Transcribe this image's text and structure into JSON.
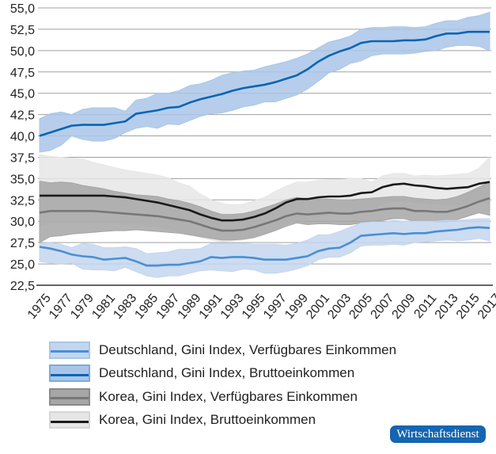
{
  "chart_data": {
    "type": "area",
    "x": [
      1975,
      1976,
      1977,
      1978,
      1979,
      1980,
      1981,
      1982,
      1983,
      1984,
      1985,
      1986,
      1987,
      1988,
      1989,
      1990,
      1991,
      1992,
      1993,
      1994,
      1995,
      1996,
      1997,
      1998,
      1999,
      2000,
      2001,
      2002,
      2003,
      2004,
      2005,
      2006,
      2007,
      2008,
      2009,
      2010,
      2011,
      2012,
      2013,
      2014,
      2015,
      2016,
      2017
    ],
    "xticks": [
      "1975",
      "1977",
      "1979",
      "1981",
      "1983",
      "1985",
      "1987",
      "1989",
      "1991",
      "1993",
      "1995",
      "1997",
      "1999",
      "2001",
      "2003",
      "2005",
      "2007",
      "2009",
      "2011",
      "2013",
      "2015",
      "2017"
    ],
    "yticks": [
      "22,5",
      "25,0",
      "27,5",
      "30,0",
      "32,5",
      "35,0",
      "37,5",
      "40,0",
      "42,5",
      "45,0",
      "47,5",
      "50,0",
      "52,5",
      "55,0"
    ],
    "ylim": [
      22.5,
      55.0
    ],
    "grid": true,
    "legend_position": "bottom",
    "series": [
      {
        "name": "Korea, Gini Index, Bruttoeinkommen",
        "line_color": "#1a1a1a",
        "band_color": "#e6e6e6",
        "values": [
          33.0,
          33.0,
          33.0,
          33.0,
          33.0,
          33.0,
          33.0,
          32.9,
          32.8,
          32.6,
          32.4,
          32.2,
          31.9,
          31.6,
          31.3,
          30.8,
          30.4,
          30.1,
          30.1,
          30.2,
          30.5,
          30.9,
          31.5,
          32.2,
          32.6,
          32.6,
          32.8,
          32.9,
          32.9,
          33.0,
          33.3,
          33.4,
          34.0,
          34.3,
          34.4,
          34.2,
          34.1,
          33.9,
          33.8,
          33.9,
          34.0,
          34.4,
          34.6
        ],
        "low": [
          29.5,
          29.8,
          29.8,
          29.8,
          29.8,
          29.8,
          29.8,
          29.8,
          29.7,
          29.6,
          29.5,
          29.3,
          29.1,
          28.8,
          28.5,
          28.1,
          27.8,
          27.6,
          27.7,
          27.8,
          28.0,
          28.4,
          28.9,
          29.6,
          30.1,
          30.3,
          30.5,
          30.8,
          30.9,
          31.0,
          31.3,
          31.5,
          32.0,
          32.3,
          32.3,
          32.2,
          32.1,
          31.9,
          31.8,
          31.9,
          32.0,
          32.4,
          32.0
        ],
        "high": [
          37.8,
          37.6,
          37.5,
          37.4,
          37.3,
          36.9,
          36.6,
          36.3,
          36.0,
          35.8,
          35.6,
          35.4,
          35.1,
          34.5,
          34.1,
          33.2,
          32.5,
          32.1,
          31.9,
          32.0,
          32.4,
          32.8,
          33.5,
          34.1,
          34.6,
          34.6,
          34.8,
          34.9,
          34.9,
          35.0,
          35.0,
          34.6,
          35.3,
          35.6,
          35.6,
          35.3,
          35.4,
          35.3,
          35.4,
          35.5,
          35.6,
          36.2,
          37.5
        ]
      },
      {
        "name": "Korea, Gini Index, Verfügbares Einkommen",
        "line_color": "#777777",
        "band_color": "#a6a6a6",
        "values": [
          31.0,
          31.2,
          31.2,
          31.2,
          31.2,
          31.2,
          31.1,
          31.0,
          30.9,
          30.8,
          30.7,
          30.6,
          30.4,
          30.2,
          30.0,
          29.6,
          29.2,
          28.9,
          28.9,
          29.0,
          29.3,
          29.7,
          30.1,
          30.6,
          30.9,
          30.8,
          30.9,
          31.0,
          30.9,
          30.9,
          31.1,
          31.2,
          31.4,
          31.5,
          31.5,
          31.2,
          31.2,
          31.1,
          31.1,
          31.4,
          31.8,
          32.3,
          32.7
        ],
        "low": [
          27.5,
          28.2,
          28.3,
          28.5,
          28.6,
          28.7,
          28.8,
          28.9,
          28.9,
          29.0,
          28.9,
          28.8,
          28.7,
          28.6,
          28.4,
          28.2,
          28.0,
          27.8,
          27.8,
          27.9,
          28.1,
          28.5,
          28.9,
          29.4,
          29.8,
          29.6,
          29.7,
          29.7,
          29.6,
          29.6,
          29.8,
          30.0,
          30.1,
          30.3,
          30.3,
          30.0,
          30.0,
          29.9,
          29.9,
          30.2,
          30.6,
          31.0,
          30.7
        ],
        "high": [
          34.7,
          34.5,
          34.6,
          34.5,
          34.2,
          34.0,
          33.8,
          33.5,
          33.3,
          33.1,
          33.0,
          32.9,
          32.6,
          32.4,
          32.1,
          31.7,
          31.2,
          30.8,
          30.8,
          30.9,
          31.2,
          31.6,
          32.0,
          32.5,
          32.8,
          32.6,
          32.6,
          32.6,
          32.5,
          32.5,
          32.6,
          32.7,
          32.8,
          32.9,
          32.9,
          32.7,
          32.6,
          32.5,
          32.6,
          32.9,
          33.4,
          34.0,
          34.6
        ]
      },
      {
        "name": "Deutschland, Gini Index, Verfügbares Einkommen",
        "line_color": "#4a8fd4",
        "band_color": "#c4d6ef",
        "values": [
          27.0,
          26.8,
          26.5,
          26.1,
          25.9,
          25.8,
          25.5,
          25.6,
          25.7,
          25.3,
          24.8,
          24.8,
          24.9,
          24.9,
          25.1,
          25.3,
          25.8,
          25.7,
          25.8,
          25.8,
          25.7,
          25.5,
          25.5,
          25.5,
          25.7,
          25.9,
          26.5,
          26.8,
          26.9,
          27.5,
          28.3,
          28.4,
          28.5,
          28.6,
          28.5,
          28.6,
          28.6,
          28.8,
          28.9,
          29.0,
          29.2,
          29.3,
          29.2
        ],
        "low": [
          25.3,
          25.1,
          25.0,
          25.1,
          24.4,
          24.3,
          24.3,
          24.2,
          24.6,
          24.1,
          23.6,
          23.4,
          23.6,
          23.6,
          23.9,
          24.2,
          24.3,
          24.2,
          24.1,
          24.4,
          24.3,
          23.9,
          23.9,
          24.1,
          24.4,
          24.8,
          25.5,
          25.8,
          25.8,
          26.3,
          27.1,
          27.2,
          27.2,
          27.3,
          27.2,
          27.5,
          27.6,
          27.7,
          27.8,
          27.7,
          27.8,
          28.0,
          27.7
        ],
        "high": [
          27.4,
          27.5,
          27.3,
          26.9,
          27.4,
          27.3,
          26.9,
          26.9,
          27.0,
          26.8,
          26.2,
          26.3,
          26.4,
          26.7,
          26.7,
          26.8,
          27.4,
          27.4,
          27.4,
          27.4,
          27.3,
          27.3,
          27.3,
          27.2,
          27.4,
          27.8,
          28.4,
          28.4,
          28.8,
          29.3,
          29.8,
          29.9,
          29.9,
          30.1,
          30.0,
          30.0,
          30.0,
          30.0,
          30.1,
          30.1,
          30.2,
          30.3,
          30.3
        ]
      },
      {
        "name": "Deutschland, Gini Index, Bruttoeinkommen",
        "line_color": "#0a64b4",
        "band_color": "#a9c6e8",
        "values": [
          40.0,
          40.4,
          40.8,
          41.2,
          41.3,
          41.3,
          41.3,
          41.5,
          41.7,
          42.6,
          42.8,
          43.0,
          43.3,
          43.4,
          43.9,
          44.3,
          44.6,
          44.9,
          45.3,
          45.6,
          45.8,
          46.0,
          46.3,
          46.7,
          47.1,
          47.8,
          48.7,
          49.4,
          49.9,
          50.3,
          50.9,
          51.1,
          51.1,
          51.1,
          51.2,
          51.2,
          51.3,
          51.7,
          52.0,
          52.0,
          52.2,
          52.2,
          52.2
        ],
        "low": [
          38.1,
          38.3,
          38.9,
          40.0,
          39.6,
          39.4,
          39.4,
          39.7,
          40.4,
          40.9,
          41.1,
          40.9,
          41.4,
          41.3,
          41.8,
          42.3,
          42.6,
          42.7,
          43.0,
          43.4,
          43.6,
          44.0,
          44.0,
          44.4,
          44.8,
          45.5,
          46.4,
          47.4,
          47.8,
          48.5,
          48.8,
          49.4,
          49.6,
          49.6,
          49.6,
          49.7,
          49.9,
          50.0,
          50.4,
          50.6,
          50.6,
          50.5,
          50.0
        ],
        "high": [
          42.0,
          42.6,
          42.8,
          42.5,
          43.1,
          43.3,
          43.3,
          43.3,
          42.9,
          44.2,
          44.4,
          45.0,
          45.0,
          45.3,
          45.9,
          46.1,
          46.5,
          47.1,
          47.4,
          47.6,
          47.7,
          48.1,
          48.4,
          48.7,
          49.1,
          49.6,
          50.3,
          51.0,
          51.3,
          51.7,
          52.5,
          52.7,
          52.7,
          52.8,
          52.8,
          52.7,
          52.8,
          53.2,
          53.5,
          53.5,
          53.9,
          54.1,
          54.5
        ]
      }
    ]
  },
  "legend": [
    {
      "label": "Deutschland, Gini Index, Verfügbares Einkommen",
      "band": "#c4d6ef",
      "border": "#a9c6e8",
      "line": "#4a8fd4"
    },
    {
      "label": "Deutschland, Gini Index, Bruttoeinkommen",
      "band": "#a9c6e8",
      "border": "#7fa9da",
      "line": "#0a64b4"
    },
    {
      "label": "Korea, Gini Index, Verfügbares Einkommen",
      "band": "#a6a6a6",
      "border": "#8a8a8a",
      "line": "#777777"
    },
    {
      "label": "Korea, Gini Index, Bruttoeinkommen",
      "band": "#e6e6e6",
      "border": "#d6d6d6",
      "line": "#1a1a1a"
    }
  ],
  "badge": {
    "text": "Wirtschaftsdienst",
    "color": "#1565b0"
  }
}
